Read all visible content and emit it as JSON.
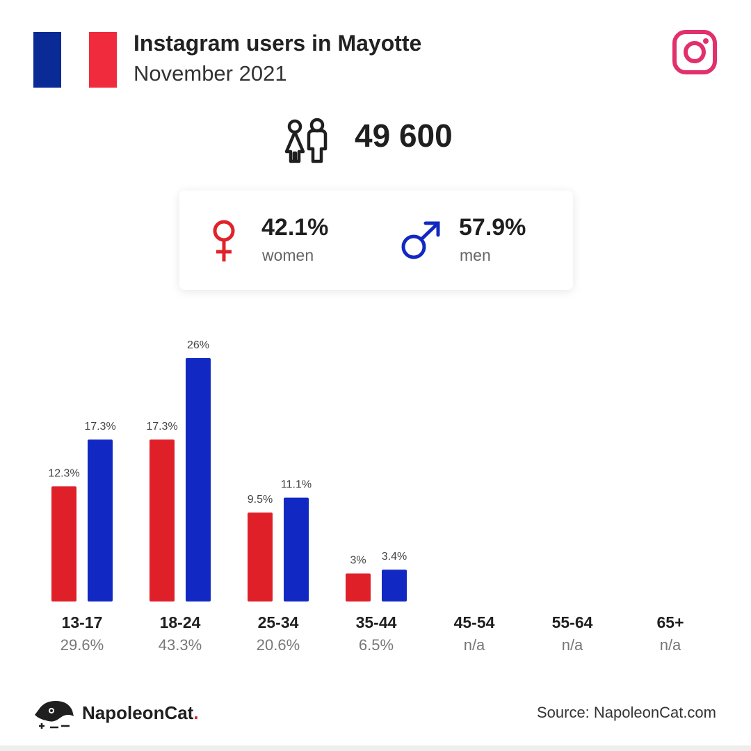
{
  "header": {
    "title": "Instagram users in Mayotte",
    "subtitle": "November 2021",
    "flag_colors": [
      "#0a2a96",
      "#ffffff",
      "#ef2b3d"
    ],
    "platform_icon": "instagram-icon"
  },
  "total": {
    "value": "49 600",
    "icon": "people-icon"
  },
  "gender": {
    "women": {
      "pct": "42.1%",
      "label": "women",
      "icon": "female-symbol-icon",
      "color": "#e0232a"
    },
    "men": {
      "pct": "57.9%",
      "label": "men",
      "icon": "male-symbol-icon",
      "color": "#1129c2"
    }
  },
  "colors": {
    "women": "#df2029",
    "men": "#1129c2"
  },
  "chart_data": {
    "type": "bar",
    "categories": [
      "13-17",
      "18-24",
      "25-34",
      "35-44",
      "45-54",
      "55-64",
      "65+"
    ],
    "category_shares": [
      "29.6%",
      "43.3%",
      "20.6%",
      "6.5%",
      "n/a",
      "n/a",
      "n/a"
    ],
    "series": [
      {
        "name": "women",
        "values": [
          12.3,
          17.3,
          9.5,
          3,
          null,
          null,
          null
        ],
        "labels": [
          "12.3%",
          "17.3%",
          "9.5%",
          "3%",
          "",
          "",
          ""
        ]
      },
      {
        "name": "men",
        "values": [
          17.3,
          26,
          11.1,
          3.4,
          null,
          null,
          null
        ],
        "labels": [
          "17.3%",
          "26%",
          "11.1%",
          "3.4%",
          "",
          "",
          ""
        ]
      }
    ],
    "ylim": [
      0,
      26
    ],
    "grid": false
  },
  "footer": {
    "brand": "NapoleonCat",
    "brand_dot": ".",
    "source": "Source: NapoleonCat.com",
    "logo_icon": "napoleoncat-logo-icon"
  }
}
